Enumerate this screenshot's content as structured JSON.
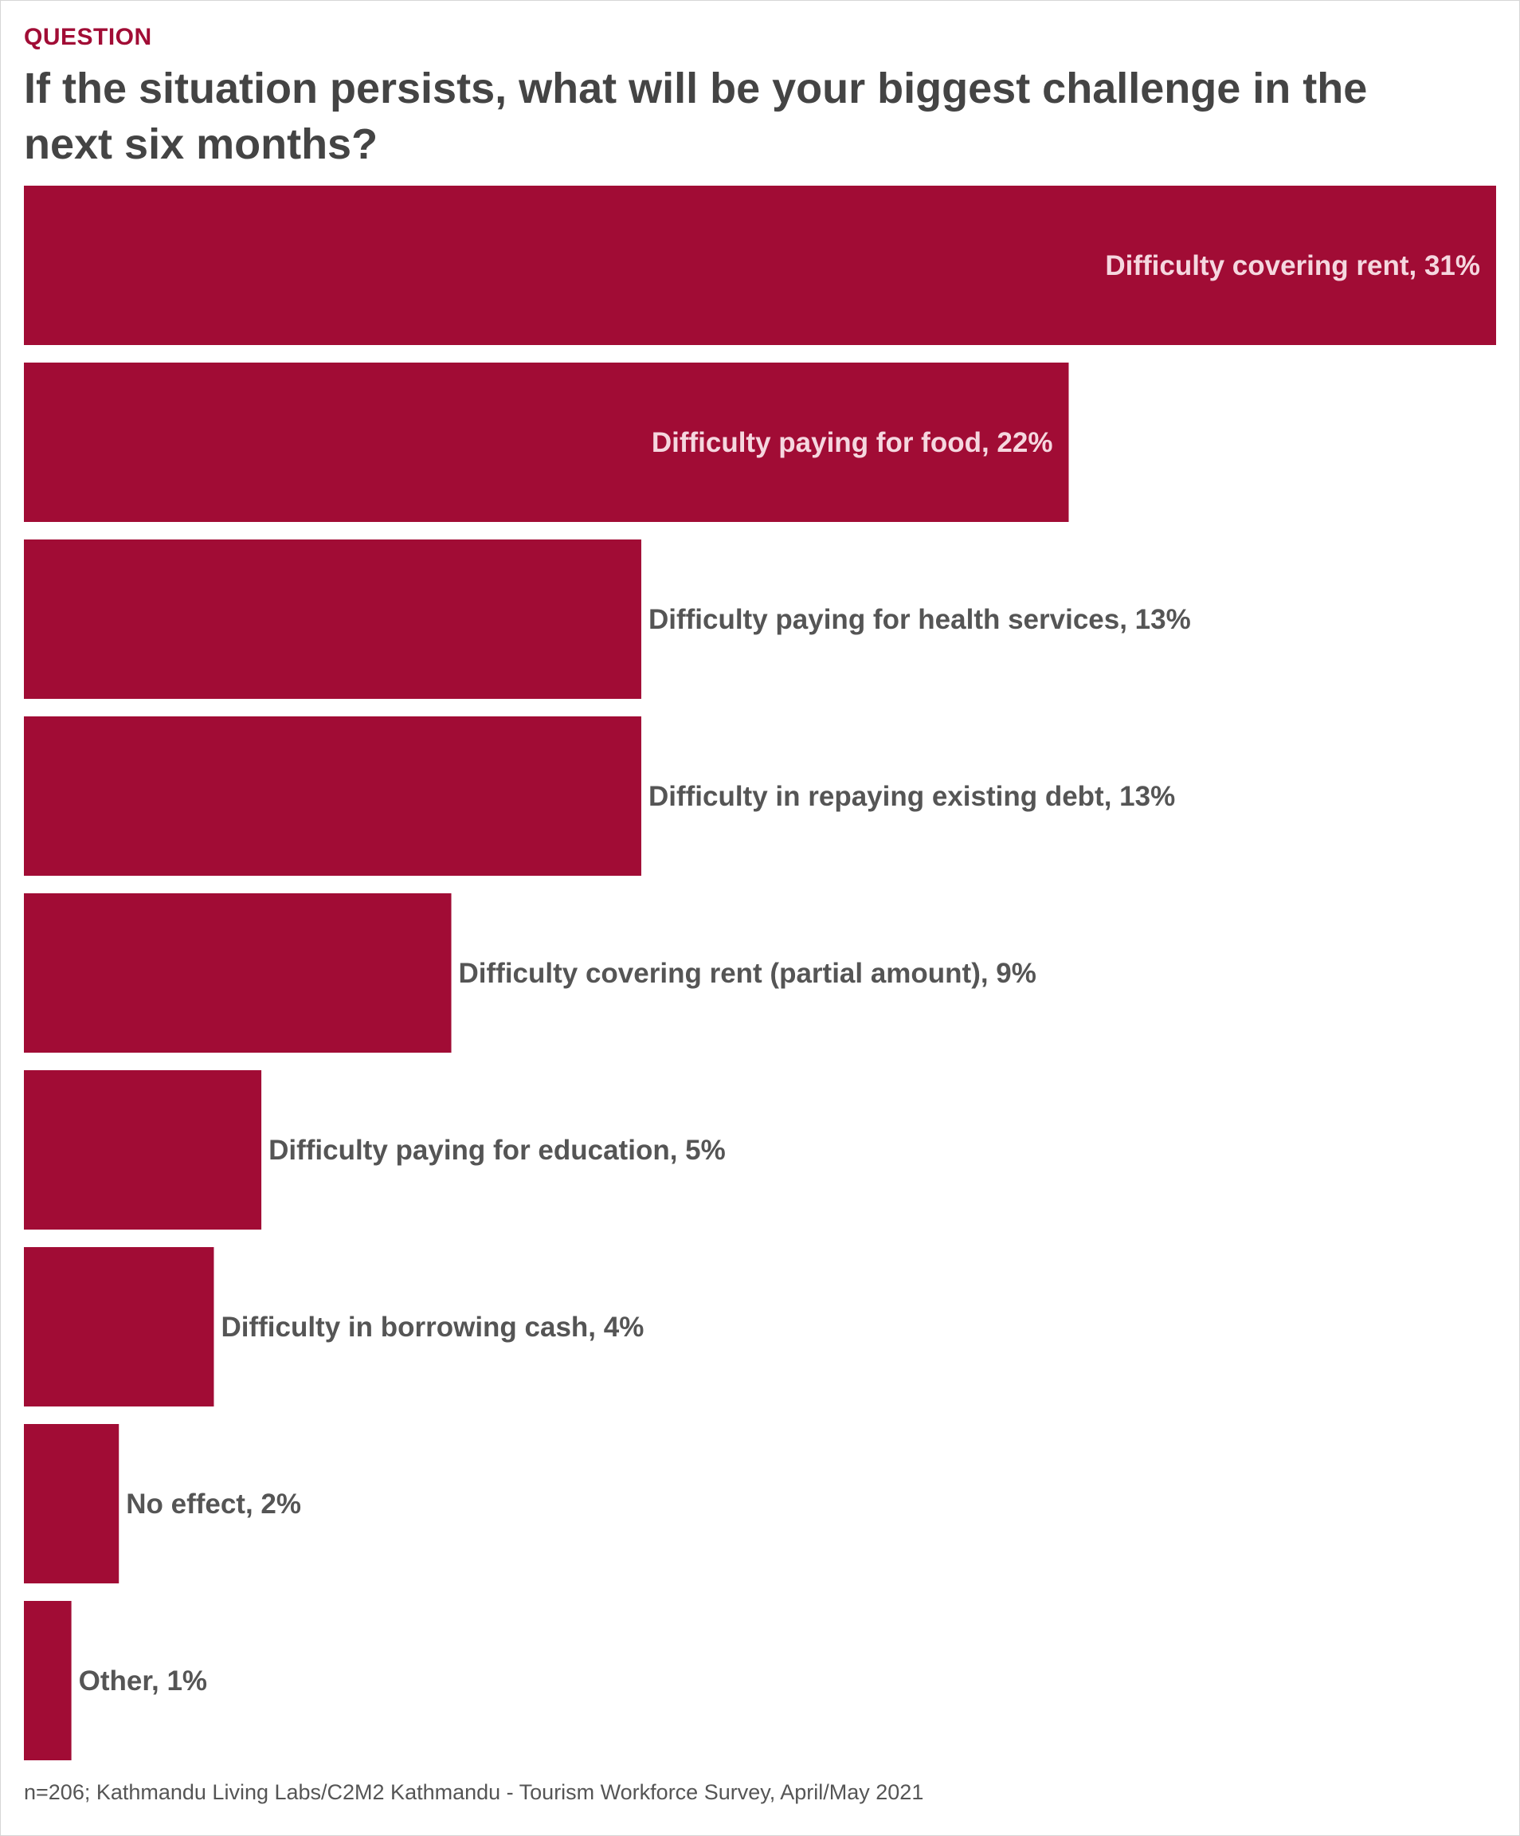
{
  "header": {
    "kicker": "QUESTION",
    "title": "If the situation persists, what will be your biggest challenge in the next six months?"
  },
  "footnote": "n=206; Kathmandu Living Labs/C2M2 Kathmandu - Tourism Workforce Survey, April/May 2021",
  "colors": {
    "bar": "#a10c35",
    "label_inside": "#f5d7df",
    "label_outside": "#555555"
  },
  "chart_data": {
    "type": "bar",
    "orientation": "horizontal",
    "title": "If the situation persists, what will be your biggest challenge in the next six months?",
    "categories": [
      "Difficulty covering rent",
      "Difficulty paying for food",
      "Difficulty paying for health services",
      "Difficulty in repaying existing debt",
      "Difficulty covering rent (partial amount)",
      "Difficulty paying for education",
      "Difficulty in borrowing cash",
      "No effect",
      "Other"
    ],
    "values": [
      31,
      22,
      13,
      13,
      9,
      5,
      4,
      2,
      1
    ],
    "labels": [
      "Difficulty covering rent, 31%",
      "Difficulty paying for food, 22%",
      "Difficulty paying for health services, 13%",
      "Difficulty in repaying existing debt, 13%",
      "Difficulty covering rent (partial amount), 9%",
      "Difficulty paying for education, 5%",
      "Difficulty in borrowing cash, 4%",
      "No effect, 2%",
      "Other, 1%"
    ],
    "unit": "%",
    "xlim": [
      0,
      31
    ],
    "grid": false,
    "legend": "none"
  }
}
